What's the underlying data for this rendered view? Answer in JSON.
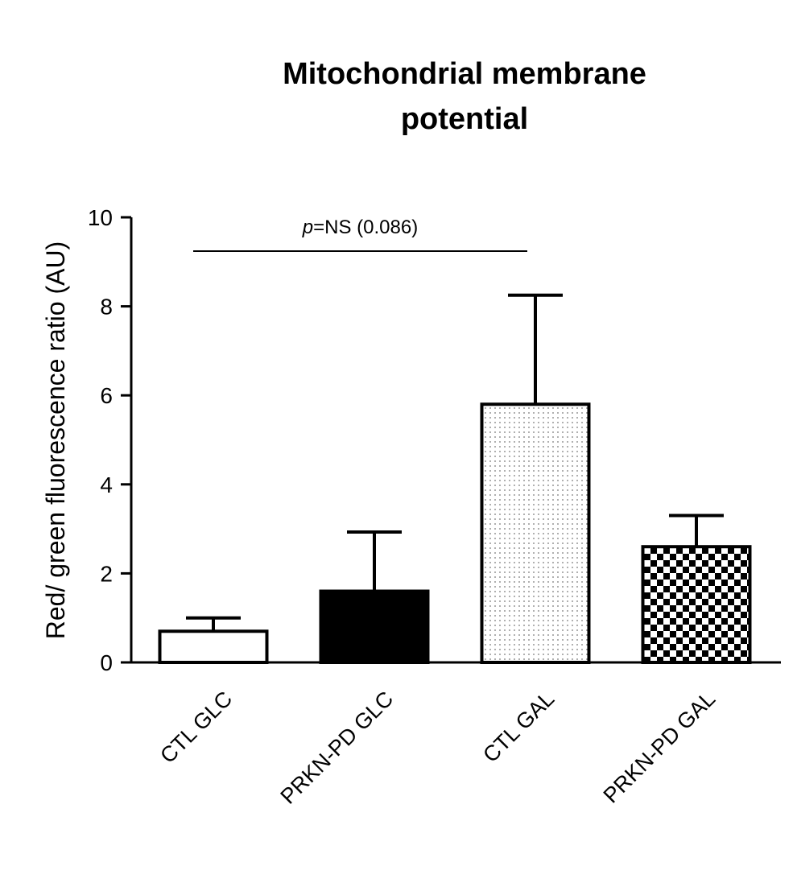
{
  "chart_data": {
    "type": "bar",
    "title_lines": [
      "Mitochondrial membrane",
      "potential"
    ],
    "xlabel": "",
    "ylabel": "Red/ green fluorescence ratio (AU)",
    "ylim": [
      0,
      10
    ],
    "yticks": [
      0,
      2,
      4,
      6,
      8,
      10
    ],
    "categories": [
      "CTL GLC",
      "PRKN-PD GLC",
      "CTL GAL",
      "PRKN-PD GAL"
    ],
    "values": [
      0.7,
      1.6,
      5.8,
      2.6
    ],
    "errors": [
      0.3,
      1.33,
      2.45,
      0.7
    ],
    "fills": [
      "white",
      "black",
      "dots",
      "checker"
    ],
    "annotation": {
      "p_symbol": "p",
      "text": "=NS (0.086)",
      "from_category": 0,
      "to_category": 2
    }
  }
}
